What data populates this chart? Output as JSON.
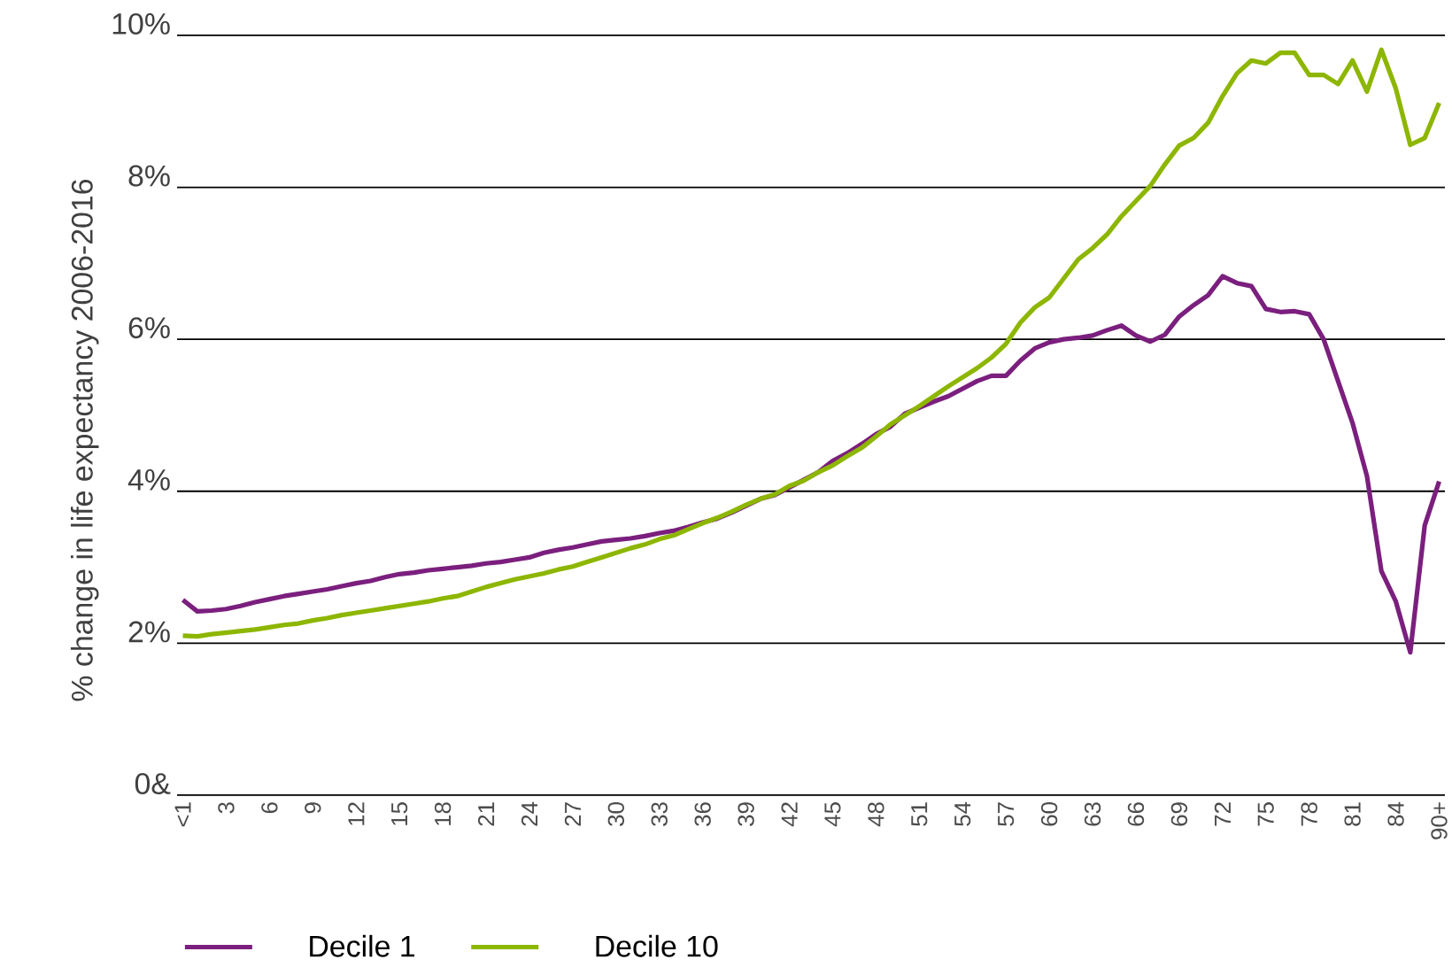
{
  "chart_data": {
    "type": "line",
    "ylabel": "% change in life expectancy 2006-2016",
    "categories": [
      "<1",
      null,
      null,
      "3",
      null,
      null,
      "6",
      null,
      null,
      "9",
      null,
      null,
      "12",
      null,
      null,
      "15",
      null,
      null,
      "18",
      null,
      null,
      "21",
      null,
      null,
      "24",
      null,
      null,
      "27",
      null,
      null,
      "30",
      null,
      null,
      "33",
      null,
      null,
      "36",
      null,
      null,
      "39",
      null,
      null,
      "42",
      null,
      null,
      "45",
      null,
      null,
      "48",
      null,
      null,
      "51",
      null,
      null,
      "54",
      null,
      null,
      "57",
      null,
      null,
      "60",
      null,
      null,
      "63",
      null,
      null,
      "66",
      null,
      null,
      "69",
      null,
      null,
      "72",
      null,
      null,
      "75",
      null,
      null,
      "78",
      null,
      null,
      "81",
      null,
      null,
      "84",
      null,
      null,
      "90+"
    ],
    "series": [
      {
        "name": "Decile 1",
        "color": "#7b1f7e",
        "values": [
          2.57,
          2.42,
          2.43,
          2.45,
          2.49,
          2.54,
          2.58,
          2.62,
          2.65,
          2.68,
          2.71,
          2.75,
          2.79,
          2.82,
          2.87,
          2.91,
          2.93,
          2.96,
          2.98,
          3.0,
          3.02,
          3.05,
          3.07,
          3.1,
          3.13,
          3.19,
          3.23,
          3.26,
          3.3,
          3.34,
          3.36,
          3.38,
          3.41,
          3.45,
          3.48,
          3.53,
          3.59,
          3.64,
          3.72,
          3.81,
          3.9,
          3.95,
          4.05,
          4.15,
          4.25,
          4.4,
          4.5,
          4.62,
          4.75,
          4.85,
          5.02,
          5.1,
          5.18,
          5.25,
          5.35,
          5.45,
          5.52,
          5.52,
          5.72,
          5.88,
          5.96,
          6.0,
          6.02,
          6.05,
          6.12,
          6.18,
          6.05,
          5.97,
          6.06,
          6.3,
          6.45,
          6.58,
          6.83,
          6.74,
          6.7,
          6.4,
          6.36,
          6.37,
          6.33,
          6.0,
          5.45,
          4.9,
          4.2,
          2.95,
          2.55,
          1.88,
          3.55,
          4.13
        ]
      },
      {
        "name": "Decile 10",
        "color": "#8db600",
        "values": [
          2.1,
          2.09,
          2.12,
          2.14,
          2.16,
          2.18,
          2.21,
          2.24,
          2.26,
          2.3,
          2.33,
          2.37,
          2.4,
          2.43,
          2.46,
          2.49,
          2.52,
          2.55,
          2.59,
          2.62,
          2.68,
          2.74,
          2.79,
          2.84,
          2.88,
          2.92,
          2.97,
          3.01,
          3.07,
          3.13,
          3.19,
          3.25,
          3.3,
          3.37,
          3.42,
          3.5,
          3.58,
          3.65,
          3.73,
          3.82,
          3.9,
          3.96,
          4.07,
          4.14,
          4.25,
          4.34,
          4.46,
          4.57,
          4.72,
          4.88,
          5.0,
          5.12,
          5.25,
          5.38,
          5.5,
          5.62,
          5.76,
          5.94,
          6.22,
          6.42,
          6.55,
          6.8,
          7.05,
          7.2,
          7.38,
          7.62,
          7.82,
          8.02,
          8.3,
          8.55,
          8.65,
          8.85,
          9.2,
          9.5,
          9.67,
          9.63,
          9.77,
          9.77,
          9.48,
          9.48,
          9.36,
          9.67,
          9.26,
          9.81,
          9.3,
          8.56,
          8.65,
          9.11
        ]
      }
    ],
    "ylim": [
      0,
      10
    ],
    "yticks": [
      {
        "value": 0,
        "label": "0&"
      },
      {
        "value": 2,
        "label": "2%"
      },
      {
        "value": 4,
        "label": "4%"
      },
      {
        "value": 6,
        "label": "6%"
      },
      {
        "value": 8,
        "label": "8%"
      },
      {
        "value": 10,
        "label": "10%"
      }
    ],
    "grid": "y",
    "legend": "bottom",
    "line_style": "solid",
    "marker": "none"
  }
}
